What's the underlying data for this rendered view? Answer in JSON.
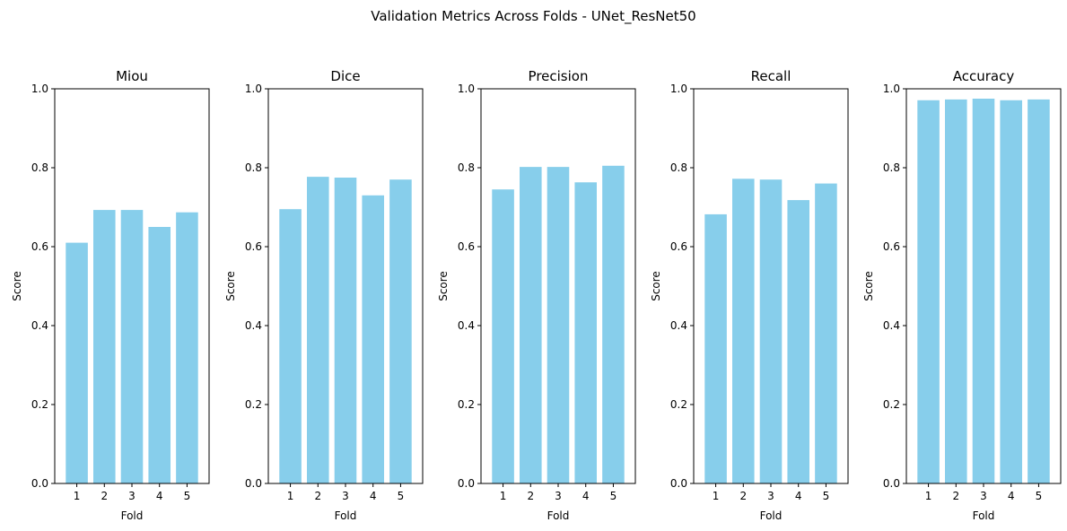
{
  "figure": {
    "suptitle": "Validation Metrics Across Folds - UNet_ResNet50",
    "bar_color": "#87CEEB"
  },
  "chart_data": [
    {
      "type": "bar",
      "title": "Miou",
      "xlabel": "Fold",
      "ylabel": "Score",
      "categories": [
        "1",
        "2",
        "3",
        "4",
        "5"
      ],
      "values": [
        0.61,
        0.693,
        0.693,
        0.65,
        0.687
      ],
      "ylim": [
        0,
        1
      ],
      "yticks": [
        "0.0",
        "0.2",
        "0.4",
        "0.6",
        "0.8",
        "1.0"
      ],
      "grid": false
    },
    {
      "type": "bar",
      "title": "Dice",
      "xlabel": "Fold",
      "ylabel": "Score",
      "categories": [
        "1",
        "2",
        "3",
        "4",
        "5"
      ],
      "values": [
        0.695,
        0.777,
        0.775,
        0.73,
        0.77
      ],
      "ylim": [
        0,
        1
      ],
      "yticks": [
        "0.0",
        "0.2",
        "0.4",
        "0.6",
        "0.8",
        "1.0"
      ],
      "grid": false
    },
    {
      "type": "bar",
      "title": "Precision",
      "xlabel": "Fold",
      "ylabel": "Score",
      "categories": [
        "1",
        "2",
        "3",
        "4",
        "5"
      ],
      "values": [
        0.745,
        0.802,
        0.802,
        0.763,
        0.805
      ],
      "ylim": [
        0,
        1
      ],
      "yticks": [
        "0.0",
        "0.2",
        "0.4",
        "0.6",
        "0.8",
        "1.0"
      ],
      "grid": false
    },
    {
      "type": "bar",
      "title": "Recall",
      "xlabel": "Fold",
      "ylabel": "Score",
      "categories": [
        "1",
        "2",
        "3",
        "4",
        "5"
      ],
      "values": [
        0.682,
        0.772,
        0.77,
        0.718,
        0.76
      ],
      "ylim": [
        0,
        1
      ],
      "yticks": [
        "0.0",
        "0.2",
        "0.4",
        "0.6",
        "0.8",
        "1.0"
      ],
      "grid": false
    },
    {
      "type": "bar",
      "title": "Accuracy",
      "xlabel": "Fold",
      "ylabel": "Score",
      "categories": [
        "1",
        "2",
        "3",
        "4",
        "5"
      ],
      "values": [
        0.971,
        0.973,
        0.975,
        0.971,
        0.973
      ],
      "ylim": [
        0,
        1
      ],
      "yticks": [
        "0.0",
        "0.2",
        "0.4",
        "0.6",
        "0.8",
        "1.0"
      ],
      "grid": false
    }
  ]
}
